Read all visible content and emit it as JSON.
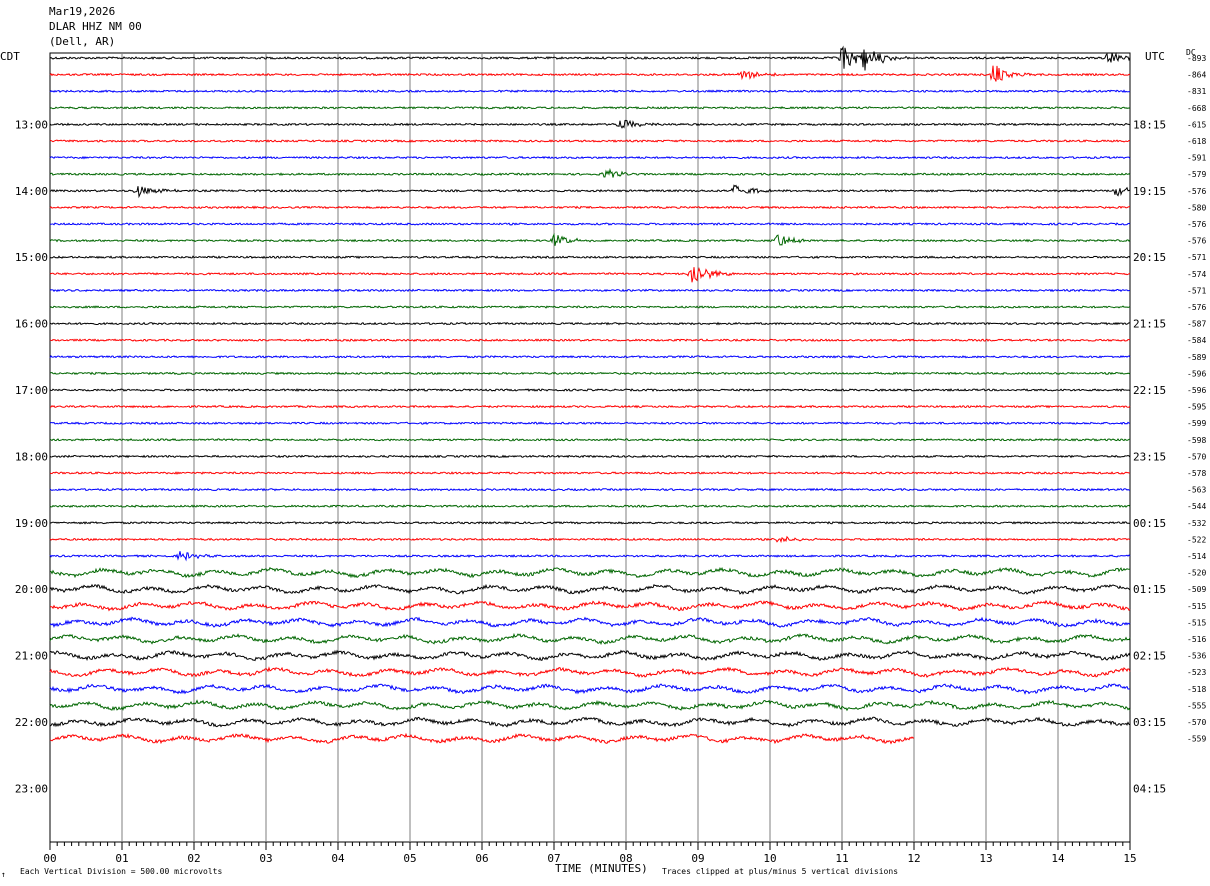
{
  "header": {
    "date": "Mar19,2026",
    "station": "DLAR HHZ NM 00",
    "location": "(Dell, AR)"
  },
  "axis": {
    "left_tz": "CDT",
    "right_tz": "UTC",
    "dc_label": "DC",
    "xlabel": "TIME (MINUTES)"
  },
  "footer": {
    "scale_note": "Each Vertical Division =  500.00 microvolts",
    "clip_note": "Traces clipped at plus/minus 5 vertical divisions",
    "corner_mark": "↑"
  },
  "colors": {
    "trace_cycle": [
      "#000000",
      "#ff0000",
      "#0000ff",
      "#006600"
    ],
    "grid": "#7f7f7f",
    "border": "#000000"
  },
  "chart_data": {
    "type": "line",
    "description_kind": "helicorder",
    "x_ticks": [
      "00",
      "01",
      "02",
      "03",
      "04",
      "05",
      "06",
      "07",
      "08",
      "09",
      "10",
      "11",
      "12",
      "13",
      "14",
      "15"
    ],
    "xlim": [
      0,
      15
    ],
    "cdt_hour_labels": [
      "13:00",
      "14:00",
      "15:00",
      "16:00",
      "17:00",
      "18:00",
      "19:00",
      "20:00",
      "21:00",
      "22:00",
      "23:00"
    ],
    "utc_hour_labels": [
      "18:15",
      "19:15",
      "20:15",
      "21:15",
      "22:15",
      "23:15",
      "00:15",
      "01:15",
      "02:15",
      "03:15",
      "04:15"
    ],
    "dc_offsets": [
      "-893",
      "-864",
      "-831",
      "-668",
      "-615",
      "-618",
      "-591",
      "-579",
      "-576",
      "-580",
      "-576",
      "-576",
      "-571",
      "-574",
      "-571",
      "-576",
      "-587",
      "-584",
      "-589",
      "-596",
      "-596",
      "-595",
      "-599",
      "-598",
      "-570",
      "-578",
      "-563",
      "-544",
      "-532",
      "-522",
      "-514",
      "-520",
      "-509",
      "-515",
      "-515",
      "-516",
      "-536",
      "-523",
      "-518",
      "-555",
      "-570",
      "-559"
    ],
    "events": [
      {
        "row": 0,
        "minute": 11.0,
        "amp": 1.0
      },
      {
        "row": 0,
        "minute": 11.3,
        "amp": 1.0
      },
      {
        "row": 0,
        "minute": 14.7,
        "amp": 0.5
      },
      {
        "row": 1,
        "minute": 9.6,
        "amp": 0.5
      },
      {
        "row": 1,
        "minute": 13.1,
        "amp": 0.8
      },
      {
        "row": 4,
        "minute": 7.9,
        "amp": 0.45
      },
      {
        "row": 7,
        "minute": 7.7,
        "amp": 0.4
      },
      {
        "row": 8,
        "minute": 1.2,
        "amp": 0.5
      },
      {
        "row": 8,
        "minute": 9.5,
        "amp": 0.55
      },
      {
        "row": 8,
        "minute": 14.8,
        "amp": 0.4
      },
      {
        "row": 11,
        "minute": 7.0,
        "amp": 0.45
      },
      {
        "row": 11,
        "minute": 10.1,
        "amp": 0.5
      },
      {
        "row": 13,
        "minute": 8.9,
        "amp": 1.0
      },
      {
        "row": 29,
        "minute": 10.1,
        "amp": 0.3
      },
      {
        "row": 30,
        "minute": 1.8,
        "amp": 0.35
      }
    ],
    "last_row_end_minute": 12.0
  }
}
